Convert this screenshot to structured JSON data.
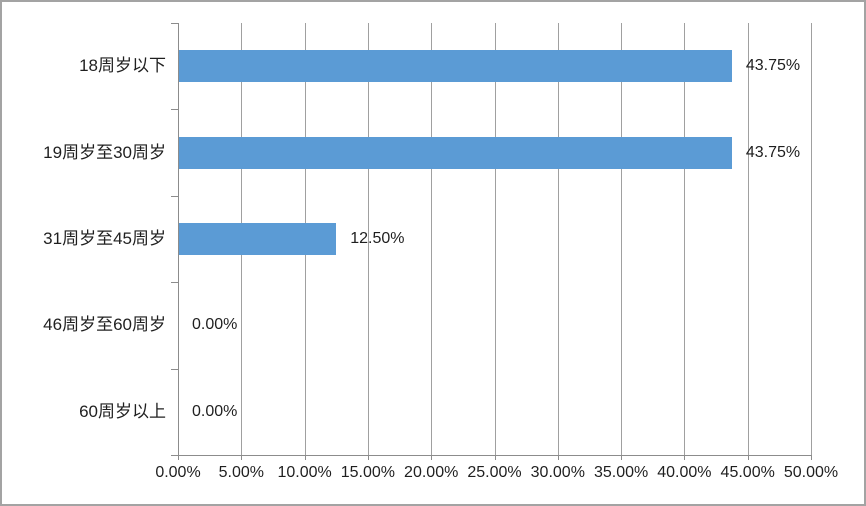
{
  "chart_data": {
    "type": "bar",
    "orientation": "horizontal",
    "title": "",
    "xlabel": "",
    "ylabel": "",
    "categories": [
      "18周岁以下",
      "19周岁至30周岁",
      "31周岁至45周岁",
      "46周岁至60周岁",
      "60周岁以上"
    ],
    "values": [
      43.75,
      43.75,
      12.5,
      0,
      0
    ],
    "value_labels": [
      "43.75%",
      "43.75%",
      "12.50%",
      "0.00%",
      "0.00%"
    ],
    "x_tick_labels": [
      "0.00%",
      "5.00%",
      "10.00%",
      "15.00%",
      "20.00%",
      "25.00%",
      "30.00%",
      "35.00%",
      "40.00%",
      "45.00%",
      "50.00%"
    ],
    "xlim": [
      0,
      50
    ],
    "x_tick_step": 5,
    "grid": true,
    "legend": false,
    "colors": {
      "bar": "#5B9BD5",
      "gridline": "#A0A0A0",
      "axis": "#8C8C8C",
      "text": "#1F1F1F",
      "background": "#FFFFFF",
      "border": "#A3A3A3"
    }
  }
}
